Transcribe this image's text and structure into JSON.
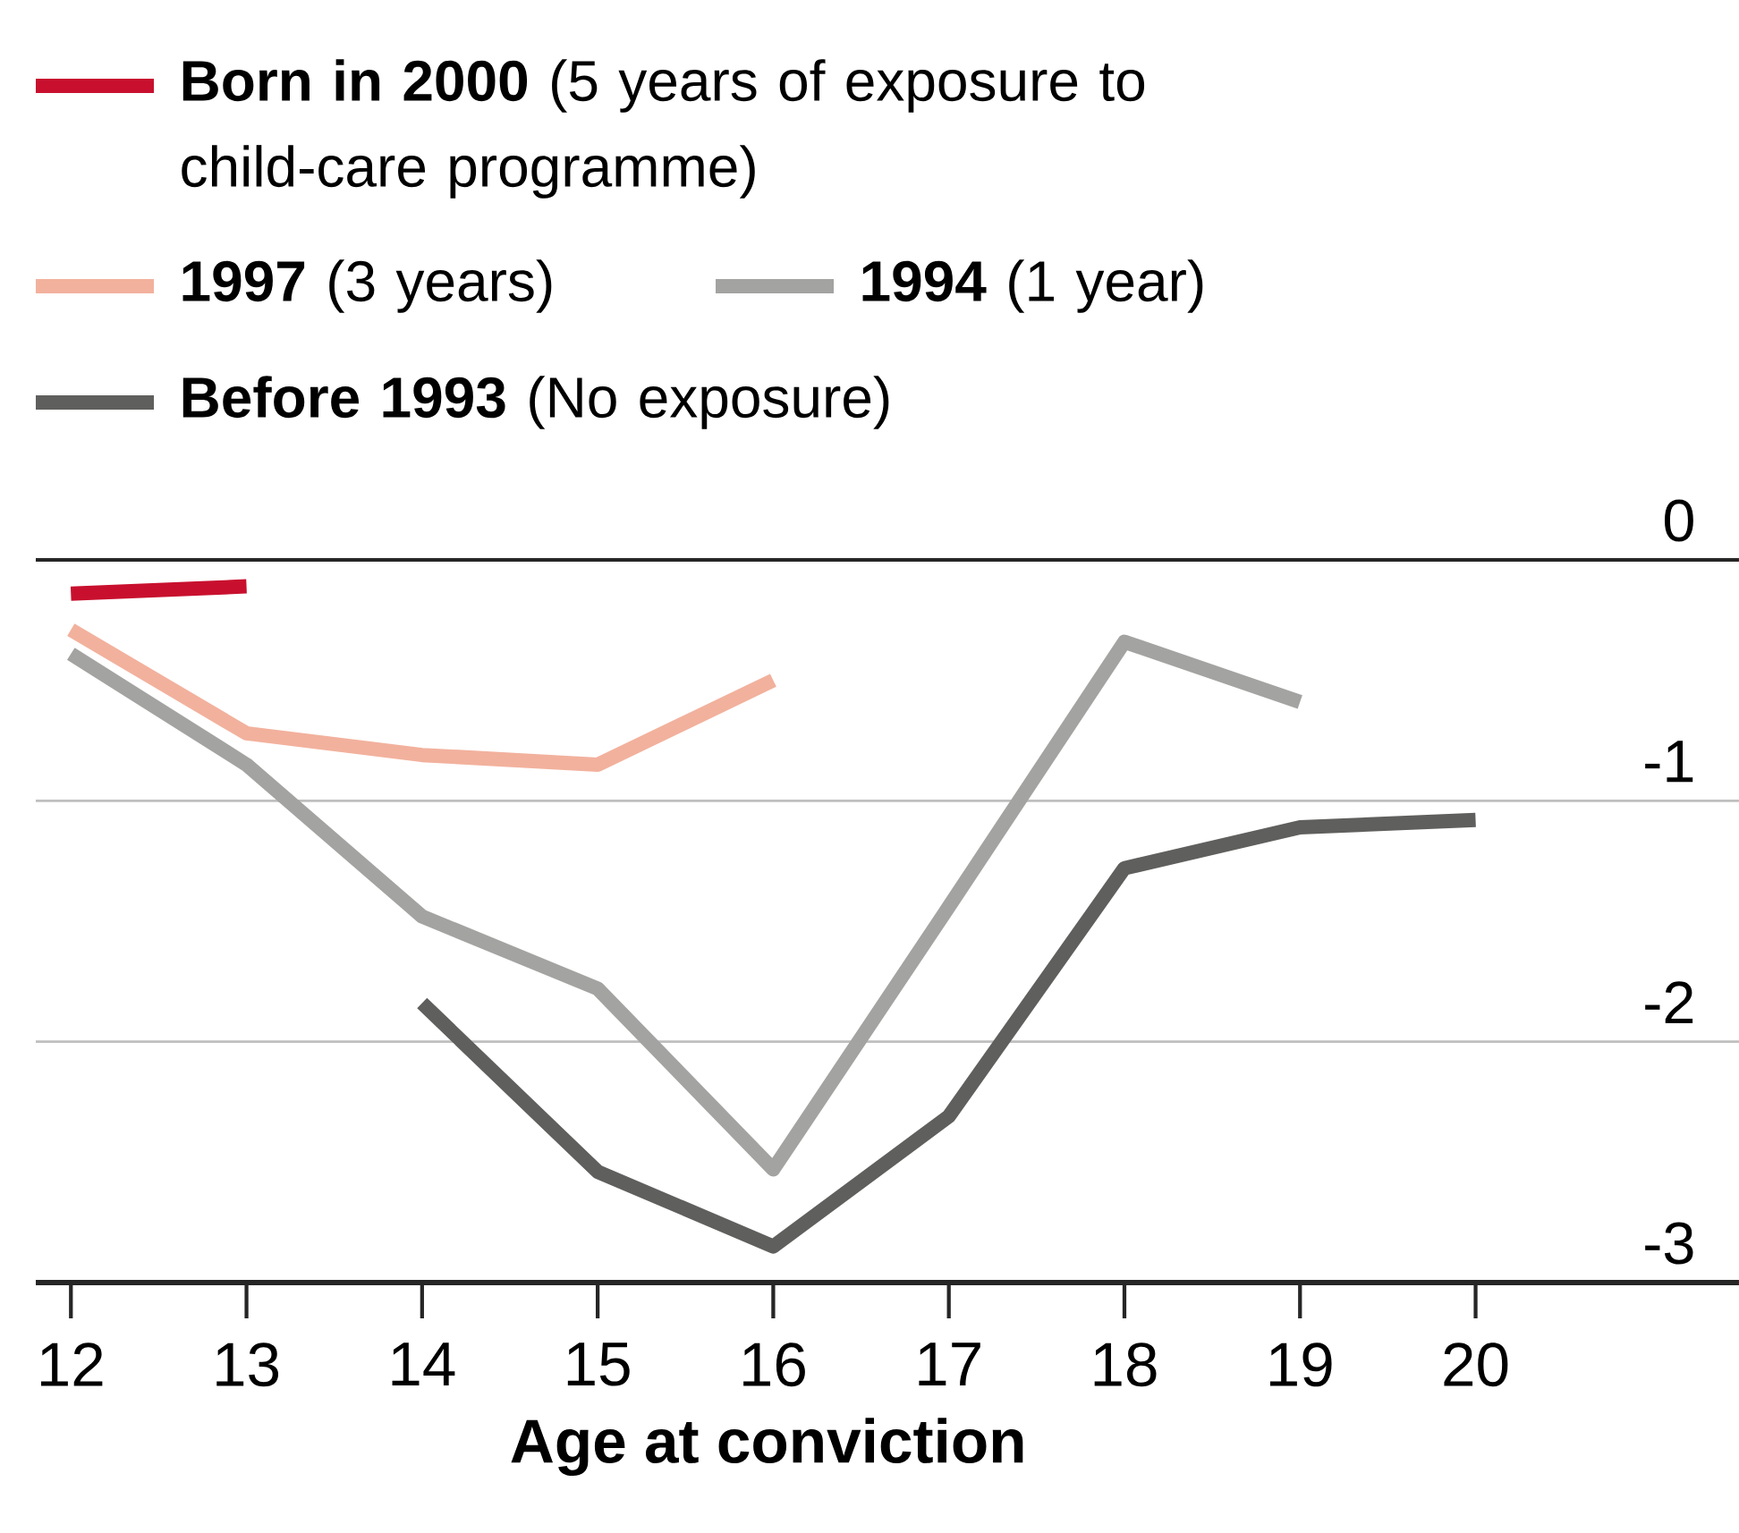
{
  "chart_data": {
    "type": "line",
    "xlabel": "Age at conviction",
    "x": [
      12,
      13,
      14,
      15,
      16,
      17,
      18,
      19,
      20
    ],
    "series": [
      {
        "name": "**Born in 2000** (5 years of exposure to child-care programme)",
        "color": "#c8102e",
        "values": [
          -0.14,
          -0.11,
          null,
          null,
          null,
          null,
          null,
          null,
          null
        ]
      },
      {
        "name": "**1997** (3 years)",
        "color": "#f2b19d",
        "values": [
          -0.29,
          -0.72,
          -0.81,
          -0.85,
          -0.5,
          null,
          null,
          null,
          null
        ]
      },
      {
        "name": "**1994** (1 year)",
        "color": "#a3a3a1",
        "values": [
          -0.39,
          -0.85,
          -1.48,
          -1.78,
          -2.53,
          -1.44,
          -0.34,
          -0.59,
          null
        ]
      },
      {
        "name": "**Before 1993** (No exposure)",
        "color": "#5f5f5d",
        "values": [
          null,
          null,
          -1.84,
          -2.54,
          -2.85,
          -2.31,
          -1.28,
          -1.11,
          -1.08
        ]
      }
    ],
    "xlim": [
      11.8,
      21.5
    ],
    "ylim": [
      -3,
      0
    ],
    "xticks": [
      12,
      13,
      14,
      15,
      16,
      17,
      18,
      19,
      20
    ],
    "yticks": [
      -3,
      -2,
      -1,
      0
    ],
    "grid": "y",
    "legend": "top left",
    "marker": "none",
    "line_style": "solid"
  }
}
